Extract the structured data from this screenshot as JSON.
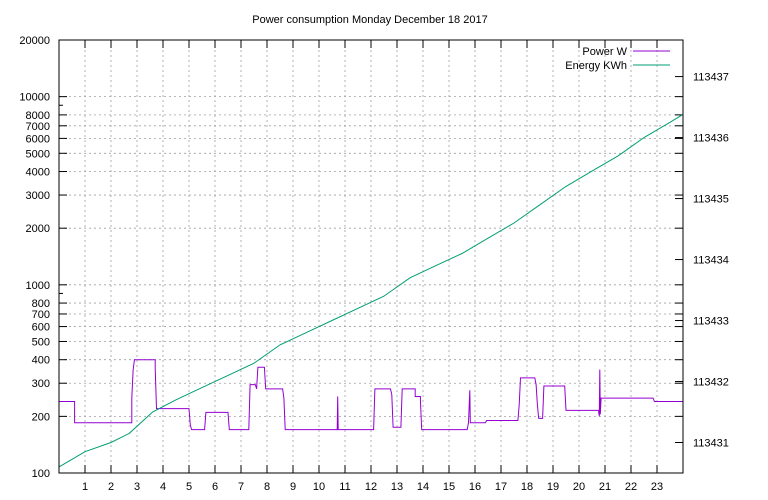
{
  "chart_data": {
    "type": "line",
    "title": "Power consumption Monday December 18 2017",
    "xlabel": "",
    "ylabel": "",
    "y2label": "",
    "xlim": [
      0,
      24
    ],
    "x_ticks": [
      1,
      2,
      3,
      4,
      5,
      6,
      7,
      8,
      9,
      10,
      11,
      12,
      13,
      14,
      15,
      16,
      17,
      18,
      19,
      20,
      21,
      22,
      23
    ],
    "ylim": [
      100,
      20000
    ],
    "y_scale": "log",
    "y_ticks": [
      100,
      200,
      300,
      400,
      500,
      600,
      700,
      800,
      1000,
      2000,
      3000,
      4000,
      5000,
      6000,
      7000,
      8000,
      10000,
      20000
    ],
    "y2lim": [
      113430.5,
      113437.6
    ],
    "y2_ticks": [
      113431,
      113432,
      113433,
      113434,
      113435,
      113436,
      113437
    ],
    "grid": true,
    "legend_position": "top-right",
    "series": [
      {
        "name": "Power W",
        "color": "#9400d3",
        "axis": "y",
        "points": [
          [
            0,
            240
          ],
          [
            0.6,
            240
          ],
          [
            0.6,
            185
          ],
          [
            2.8,
            185
          ],
          [
            2.8,
            250
          ],
          [
            2.85,
            350
          ],
          [
            2.9,
            400
          ],
          [
            3.7,
            400
          ],
          [
            3.7,
            360
          ],
          [
            3.75,
            220
          ],
          [
            5.0,
            220
          ],
          [
            5.05,
            180
          ],
          [
            5.1,
            170
          ],
          [
            5.6,
            170
          ],
          [
            5.65,
            210
          ],
          [
            6.5,
            210
          ],
          [
            6.55,
            170
          ],
          [
            7.3,
            170
          ],
          [
            7.35,
            295
          ],
          [
            7.55,
            295
          ],
          [
            7.6,
            280
          ],
          [
            7.65,
            365
          ],
          [
            7.9,
            365
          ],
          [
            7.95,
            280
          ],
          [
            8.6,
            280
          ],
          [
            8.65,
            250
          ],
          [
            8.7,
            170
          ],
          [
            10.7,
            170
          ],
          [
            10.72,
            255
          ],
          [
            10.74,
            170
          ],
          [
            12.1,
            170
          ],
          [
            12.15,
            280
          ],
          [
            12.75,
            280
          ],
          [
            12.8,
            260
          ],
          [
            12.85,
            175
          ],
          [
            13.15,
            175
          ],
          [
            13.2,
            280
          ],
          [
            13.7,
            280
          ],
          [
            13.7,
            255
          ],
          [
            13.9,
            255
          ],
          [
            13.9,
            245
          ],
          [
            13.95,
            170
          ],
          [
            15.7,
            170
          ],
          [
            15.75,
            185
          ],
          [
            15.8,
            275
          ],
          [
            15.82,
            185
          ],
          [
            16.4,
            185
          ],
          [
            16.45,
            190
          ],
          [
            17.65,
            190
          ],
          [
            17.7,
            230
          ],
          [
            17.75,
            320
          ],
          [
            18.3,
            320
          ],
          [
            18.35,
            295
          ],
          [
            18.4,
            230
          ],
          [
            18.45,
            195
          ],
          [
            18.6,
            195
          ],
          [
            18.65,
            290
          ],
          [
            19.45,
            290
          ],
          [
            19.5,
            215
          ],
          [
            20.75,
            215
          ],
          [
            20.78,
            200
          ],
          [
            20.8,
            355
          ],
          [
            20.82,
            205
          ],
          [
            20.85,
            250
          ],
          [
            22.85,
            250
          ],
          [
            22.9,
            240
          ],
          [
            24,
            240
          ]
        ]
      },
      {
        "name": "Energy KWh",
        "color": "#009e73",
        "axis": "y2",
        "points": [
          [
            0,
            113430.6
          ],
          [
            1.0,
            113430.85
          ],
          [
            2.0,
            113431.0
          ],
          [
            2.7,
            113431.15
          ],
          [
            3.6,
            113431.5
          ],
          [
            4.5,
            113431.7
          ],
          [
            5.5,
            113431.9
          ],
          [
            6.5,
            113432.1
          ],
          [
            7.5,
            113432.3
          ],
          [
            8.5,
            113432.6
          ],
          [
            9.5,
            113432.8
          ],
          [
            10.5,
            113433.0
          ],
          [
            11.5,
            113433.2
          ],
          [
            12.5,
            113433.4
          ],
          [
            13.5,
            113433.7
          ],
          [
            14.5,
            113433.9
          ],
          [
            15.5,
            113434.1
          ],
          [
            16.5,
            113434.35
          ],
          [
            17.5,
            113434.6
          ],
          [
            18.5,
            113434.9
          ],
          [
            19.5,
            113435.2
          ],
          [
            20.5,
            113435.45
          ],
          [
            21.5,
            113435.7
          ],
          [
            22.5,
            113436.0
          ],
          [
            23.5,
            113436.25
          ],
          [
            24,
            113436.38
          ]
        ]
      }
    ]
  }
}
